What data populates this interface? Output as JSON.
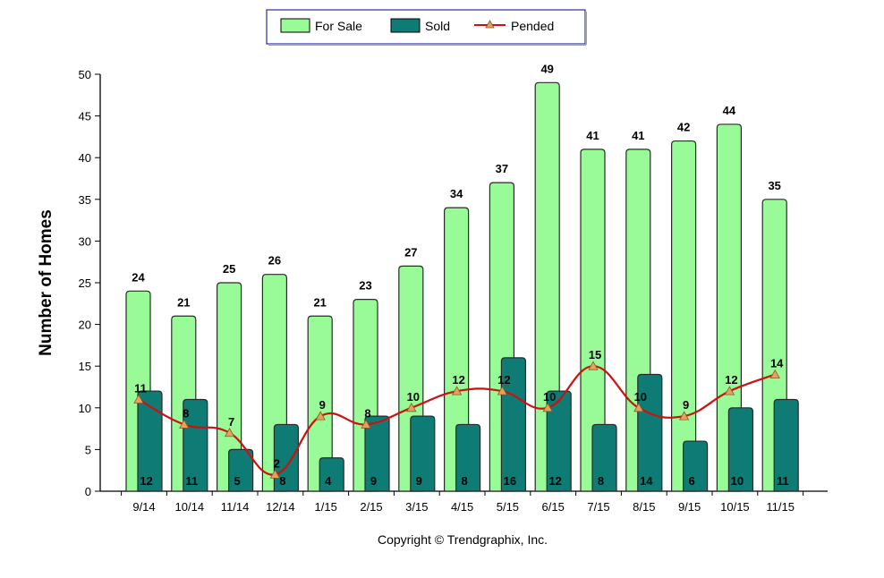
{
  "chart_data": {
    "type": "bar",
    "categories": [
      "9/14",
      "10/14",
      "11/14",
      "12/14",
      "1/15",
      "2/15",
      "3/15",
      "4/15",
      "5/15",
      "6/15",
      "7/15",
      "8/15",
      "9/15",
      "10/15",
      "11/15"
    ],
    "series": [
      {
        "name": "For Sale",
        "kind": "bar",
        "color": "#98FB98",
        "values": [
          24,
          21,
          25,
          26,
          21,
          23,
          27,
          34,
          37,
          49,
          41,
          41,
          42,
          44,
          35
        ]
      },
      {
        "name": "Sold",
        "kind": "bar",
        "color": "#0E7C74",
        "values": [
          12,
          11,
          5,
          8,
          4,
          9,
          9,
          8,
          16,
          12,
          8,
          14,
          6,
          10,
          11
        ]
      },
      {
        "name": "Pended",
        "kind": "line",
        "color": "#CC1111",
        "marker_color": "#E8A060",
        "values": [
          11,
          8,
          7,
          2,
          9,
          8,
          10,
          12,
          12,
          10,
          15,
          10,
          9,
          12,
          14
        ]
      }
    ],
    "ylabel": "Number of Homes",
    "xlabel": "",
    "ylim": [
      0,
      50
    ],
    "yticks": [
      0,
      5,
      10,
      15,
      20,
      25,
      30,
      35,
      40,
      45,
      50
    ],
    "grid": false,
    "legend_position": "top-center"
  },
  "footer": {
    "copyright": "Copyright © Trendgraphix, Inc."
  }
}
